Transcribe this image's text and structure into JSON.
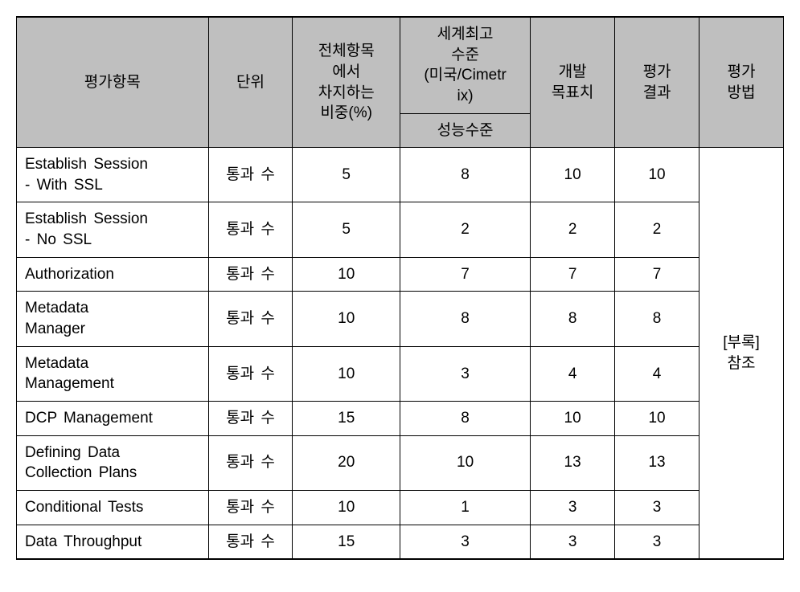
{
  "table": {
    "background_header": "#bfbfbf",
    "border_color": "#000000",
    "header": {
      "item": "평가항목",
      "unit": "단위",
      "weight_line1": "전체항목",
      "weight_line2": "에서",
      "weight_line3": "차지하는",
      "weight_line4": "비중(%)",
      "world_top_line1": "세계최고",
      "world_top_line2": "수준",
      "world_top_line3": "(미국/Cimetr",
      "world_top_line4": "ix)",
      "world_sub": "성능수준",
      "target_line1": "개발",
      "target_line2": "목표치",
      "result_line1": "평가",
      "result_line2": "결과",
      "method_line1": "평가",
      "method_line2": "방법"
    },
    "method_cell_line1": "[부록]",
    "method_cell_line2": "참조",
    "rows": [
      {
        "item_l1": "Establish  Session",
        "item_l2": "-  With  SSL",
        "unit": "통과  수",
        "weight": "5",
        "world": "8",
        "target": "10",
        "result": "10"
      },
      {
        "item_l1": "Establish  Session",
        "item_l2": "-  No  SSL",
        "unit": "통과  수",
        "weight": "5",
        "world": "2",
        "target": "2",
        "result": "2"
      },
      {
        "item_l1": "Authorization",
        "item_l2": "",
        "unit": "통과  수",
        "weight": "10",
        "world": "7",
        "target": "7",
        "result": "7"
      },
      {
        "item_l1": "Metadata",
        "item_l2": "Manager",
        "unit": "통과  수",
        "weight": "10",
        "world": "8",
        "target": "8",
        "result": "8"
      },
      {
        "item_l1": "Metadata",
        "item_l2": "Management",
        "unit": "통과  수",
        "weight": "10",
        "world": "3",
        "target": "4",
        "result": "4"
      },
      {
        "item_l1": "DCP  Management",
        "item_l2": "",
        "unit": "통과  수",
        "weight": "15",
        "world": "8",
        "target": "10",
        "result": "10"
      },
      {
        "item_l1": "Defining  Data",
        "item_l2": "Collection  Plans",
        "unit": "통과  수",
        "weight": "20",
        "world": "10",
        "target": "13",
        "result": "13"
      },
      {
        "item_l1": "Conditional  Tests",
        "item_l2": "",
        "unit": "통과  수",
        "weight": "10",
        "world": "1",
        "target": "3",
        "result": "3"
      },
      {
        "item_l1": "Data  Throughput",
        "item_l2": "",
        "unit": "통과  수",
        "weight": "15",
        "world": "3",
        "target": "3",
        "result": "3"
      }
    ]
  }
}
